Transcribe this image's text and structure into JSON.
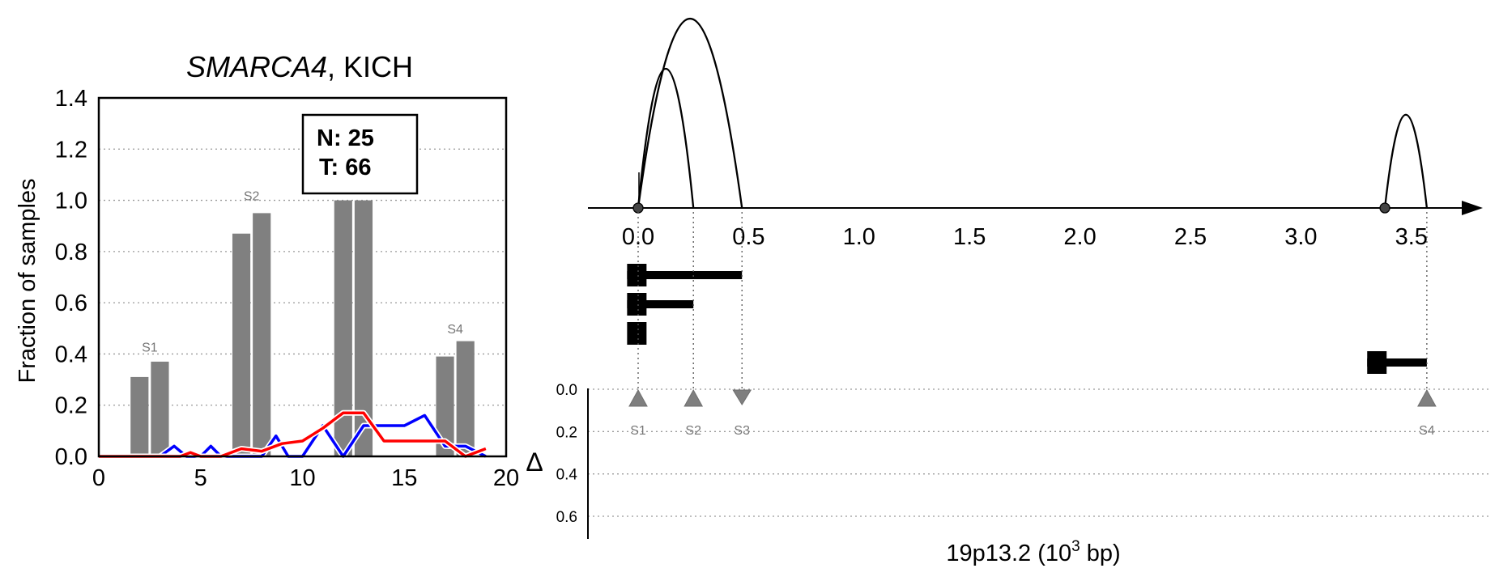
{
  "chart_data": [
    {
      "type": "bar",
      "title_gene": "SMARCA4",
      "title_rest": ", KICH",
      "ylabel": "Fraction of samples",
      "xlim": [
        0,
        20
      ],
      "ylim": [
        0,
        1.4
      ],
      "xticks": [
        "0",
        "5",
        "10",
        "15",
        "20"
      ],
      "yticks": [
        "0.0",
        "0.2",
        "0.4",
        "0.6",
        "0.8",
        "1.0",
        "1.2",
        "1.4"
      ],
      "grid": "horizontal dotted",
      "annotation": {
        "n_label": "N: 25",
        "t_label": "T: 66"
      },
      "bars": [
        {
          "x": 2,
          "value": 0.31
        },
        {
          "x": 3,
          "value": 0.37
        },
        {
          "x": 7,
          "value": 0.87
        },
        {
          "x": 8,
          "value": 0.95
        },
        {
          "x": 12,
          "value": 1.0
        },
        {
          "x": 13,
          "value": 1.0
        },
        {
          "x": 17,
          "value": 0.39
        },
        {
          "x": 18,
          "value": 0.45
        }
      ],
      "site_labels": [
        {
          "label": "S1",
          "x": 2.5,
          "y": 0.41
        },
        {
          "label": "S2",
          "x": 7.5,
          "y": 1.0
        },
        {
          "label": "S4",
          "x": 17.5,
          "y": 0.48
        }
      ],
      "series": [
        {
          "color": "#0000ff",
          "x": [
            0,
            1,
            2,
            3,
            3.7,
            4.3,
            5,
            5.5,
            6,
            7,
            8,
            8.7,
            9.3,
            10,
            11,
            12,
            13,
            14,
            15,
            16,
            17,
            18,
            19
          ],
          "y": [
            0,
            0,
            0,
            0,
            0.04,
            0,
            0,
            0.04,
            0,
            0,
            0,
            0.08,
            0,
            0,
            0.12,
            0,
            0.12,
            0.12,
            0.12,
            0.16,
            0.04,
            0.04,
            0
          ]
        },
        {
          "color": "#ff0000",
          "x": [
            0,
            1,
            2,
            3,
            4,
            4.5,
            5,
            6,
            7,
            8,
            9,
            10,
            11,
            12,
            13,
            14,
            15,
            16,
            17,
            18,
            19
          ],
          "y": [
            0,
            0,
            0,
            0,
            0,
            0.015,
            0,
            0,
            0.03,
            0.02,
            0.05,
            0.06,
            0.11,
            0.17,
            0.17,
            0.06,
            0.06,
            0.06,
            0.06,
            0,
            0.03
          ]
        }
      ]
    },
    {
      "type": "diagram",
      "xlabel_main": "19p13.2 (10",
      "xlabel_sup": "3",
      "xlabel_tail": " bp)",
      "xlim": [
        -0.23,
        3.7
      ],
      "xticks": [
        {
          "value": 0.0,
          "label": "0.0"
        },
        {
          "value": 0.5,
          "label": "0.5"
        },
        {
          "value": 1.0,
          "label": "1.0"
        },
        {
          "value": 1.5,
          "label": "1.5"
        },
        {
          "value": 2.0,
          "label": "2.0"
        },
        {
          "value": 2.5,
          "label": "2.5"
        },
        {
          "value": 3.0,
          "label": "3.0"
        },
        {
          "value": 3.5,
          "label": "3.5"
        }
      ],
      "nodes": [
        0.0,
        3.38
      ],
      "arcs": [
        {
          "start": 0.0,
          "end": 0.25,
          "height": 1.0
        },
        {
          "start": 0.0,
          "end": 0.47,
          "height": 1.36
        },
        {
          "start": 3.38,
          "end": 3.57,
          "height": 0.67
        }
      ],
      "transcripts": [
        {
          "start": -0.05,
          "end": 0.47,
          "row": 0
        },
        {
          "start": -0.05,
          "end": 0.25,
          "row": 1
        },
        {
          "start": -0.05,
          "end": 0.0,
          "row": 2
        },
        {
          "start": 3.3,
          "end": 3.57,
          "row": 3
        }
      ],
      "delta_label": "Δ",
      "delta_ticks": [
        "0.0",
        "0.2",
        "0.4",
        "0.6"
      ],
      "delta_lim": [
        0,
        0.7
      ],
      "sites": [
        {
          "label": "S1",
          "pos": 0.0,
          "dir": "up"
        },
        {
          "label": "S2",
          "pos": 0.25,
          "dir": "up"
        },
        {
          "label": "S3",
          "pos": 0.47,
          "dir": "down"
        },
        {
          "label": "S4",
          "pos": 3.57,
          "dir": "up"
        }
      ]
    }
  ]
}
